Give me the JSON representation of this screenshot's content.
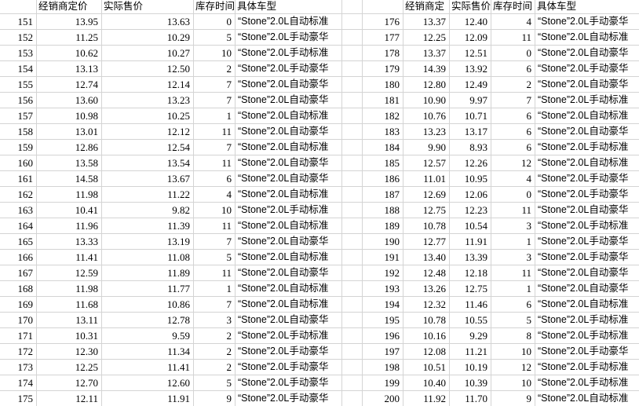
{
  "colors": {
    "gridline": "#d4d4d4",
    "text": "#000000",
    "background": "#ffffff"
  },
  "sheet": {
    "left_block": {
      "headers": [
        "经销商定价",
        "实际售价",
        "库存时间",
        "具体车型"
      ],
      "rows": [
        [
          "151",
          "13.95",
          "13.63",
          "0",
          "“Stone”2.0L自动标准"
        ],
        [
          "152",
          "11.25",
          "10.29",
          "5",
          "“Stone”2.0L手动豪华"
        ],
        [
          "153",
          "10.62",
          "10.27",
          "10",
          "“Stone”2.0L手动标准"
        ],
        [
          "154",
          "13.13",
          "12.50",
          "2",
          "“Stone”2.0L手动豪华"
        ],
        [
          "155",
          "12.74",
          "12.14",
          "7",
          "“Stone”2.0L自动豪华"
        ],
        [
          "156",
          "13.60",
          "13.23",
          "7",
          "“Stone”2.0L自动豪华"
        ],
        [
          "157",
          "10.98",
          "10.25",
          "1",
          "“Stone”2.0L自动标准"
        ],
        [
          "158",
          "13.01",
          "12.12",
          "11",
          "“Stone”2.0L自动豪华"
        ],
        [
          "159",
          "12.86",
          "12.54",
          "7",
          "“Stone”2.0L自动标准"
        ],
        [
          "160",
          "13.58",
          "13.54",
          "11",
          "“Stone”2.0L自动豪华"
        ],
        [
          "161",
          "14.58",
          "13.67",
          "6",
          "“Stone”2.0L自动豪华"
        ],
        [
          "162",
          "11.98",
          "11.22",
          "4",
          "“Stone”2.0L自动标准"
        ],
        [
          "163",
          "10.41",
          "9.82",
          "10",
          "“Stone”2.0L手动标准"
        ],
        [
          "164",
          "11.96",
          "11.39",
          "11",
          "“Stone”2.0L自动标准"
        ],
        [
          "165",
          "13.33",
          "13.19",
          "7",
          "“Stone”2.0L自动豪华"
        ],
        [
          "166",
          "11.41",
          "11.08",
          "5",
          "“Stone”2.0L自动标准"
        ],
        [
          "167",
          "12.59",
          "11.89",
          "11",
          "“Stone”2.0L自动豪华"
        ],
        [
          "168",
          "11.98",
          "11.77",
          "1",
          "“Stone”2.0L自动标准"
        ],
        [
          "169",
          "11.68",
          "10.86",
          "7",
          "“Stone”2.0L自动标准"
        ],
        [
          "170",
          "13.11",
          "12.78",
          "3",
          "“Stone”2.0L自动豪华"
        ],
        [
          "171",
          "10.31",
          "9.59",
          "2",
          "“Stone”2.0L手动标准"
        ],
        [
          "172",
          "12.30",
          "11.34",
          "2",
          "“Stone”2.0L手动豪华"
        ],
        [
          "173",
          "12.25",
          "11.41",
          "2",
          "“Stone”2.0L手动豪华"
        ],
        [
          "174",
          "12.70",
          "12.60",
          "5",
          "“Stone”2.0L手动豪华"
        ],
        [
          "175",
          "12.11",
          "11.91",
          "9",
          "“Stone”2.0L手动豪华"
        ]
      ]
    },
    "right_block": {
      "headers": [
        "经销商定",
        "实际售价",
        "库存时间",
        "具体车型"
      ],
      "rows": [
        [
          "176",
          "13.37",
          "12.40",
          "4",
          "“Stone”2.0L手动豪华"
        ],
        [
          "177",
          "12.25",
          "12.09",
          "11",
          "“Stone”2.0L自动标准"
        ],
        [
          "178",
          "13.37",
          "12.51",
          "0",
          "“Stone”2.0L自动豪华"
        ],
        [
          "179",
          "14.39",
          "13.92",
          "6",
          "“Stone”2.0L手动豪华"
        ],
        [
          "180",
          "12.80",
          "12.49",
          "2",
          "“Stone”2.0L自动豪华"
        ],
        [
          "181",
          "10.90",
          "9.97",
          "7",
          "“Stone”2.0L手动标准"
        ],
        [
          "182",
          "10.76",
          "10.71",
          "6",
          "“Stone”2.0L自动标准"
        ],
        [
          "183",
          "13.23",
          "13.17",
          "6",
          "“Stone”2.0L自动豪华"
        ],
        [
          "184",
          "9.90",
          "8.93",
          "6",
          "“Stone”2.0L手动标准"
        ],
        [
          "185",
          "12.57",
          "12.26",
          "12",
          "“Stone”2.0L自动标准"
        ],
        [
          "186",
          "11.01",
          "10.95",
          "4",
          "“Stone”2.0L手动豪华"
        ],
        [
          "187",
          "12.69",
          "12.06",
          "0",
          "“Stone”2.0L手动豪华"
        ],
        [
          "188",
          "12.75",
          "12.23",
          "11",
          "“Stone”2.0L自动豪华"
        ],
        [
          "189",
          "10.78",
          "10.54",
          "3",
          "“Stone”2.0L手动标准"
        ],
        [
          "190",
          "12.77",
          "11.91",
          "1",
          "“Stone”2.0L手动豪华"
        ],
        [
          "191",
          "13.40",
          "13.39",
          "3",
          "“Stone”2.0L手动豪华"
        ],
        [
          "192",
          "12.48",
          "12.18",
          "11",
          "“Stone”2.0L自动豪华"
        ],
        [
          "193",
          "13.26",
          "12.75",
          "1",
          "“Stone”2.0L自动豪华"
        ],
        [
          "194",
          "12.32",
          "11.46",
          "6",
          "“Stone”2.0L自动标准"
        ],
        [
          "195",
          "10.78",
          "10.55",
          "5",
          "“Stone”2.0L手动标准"
        ],
        [
          "196",
          "10.16",
          "9.29",
          "8",
          "“Stone”2.0L手动标准"
        ],
        [
          "197",
          "12.08",
          "11.21",
          "10",
          "“Stone”2.0L手动豪华"
        ],
        [
          "198",
          "10.51",
          "10.19",
          "12",
          "“Stone”2.0L手动标准"
        ],
        [
          "199",
          "10.40",
          "10.39",
          "10",
          "“Stone”2.0L手动标准"
        ],
        [
          "200",
          "11.92",
          "11.70",
          "9",
          "“Stone”2.0L自动标准"
        ]
      ]
    }
  }
}
